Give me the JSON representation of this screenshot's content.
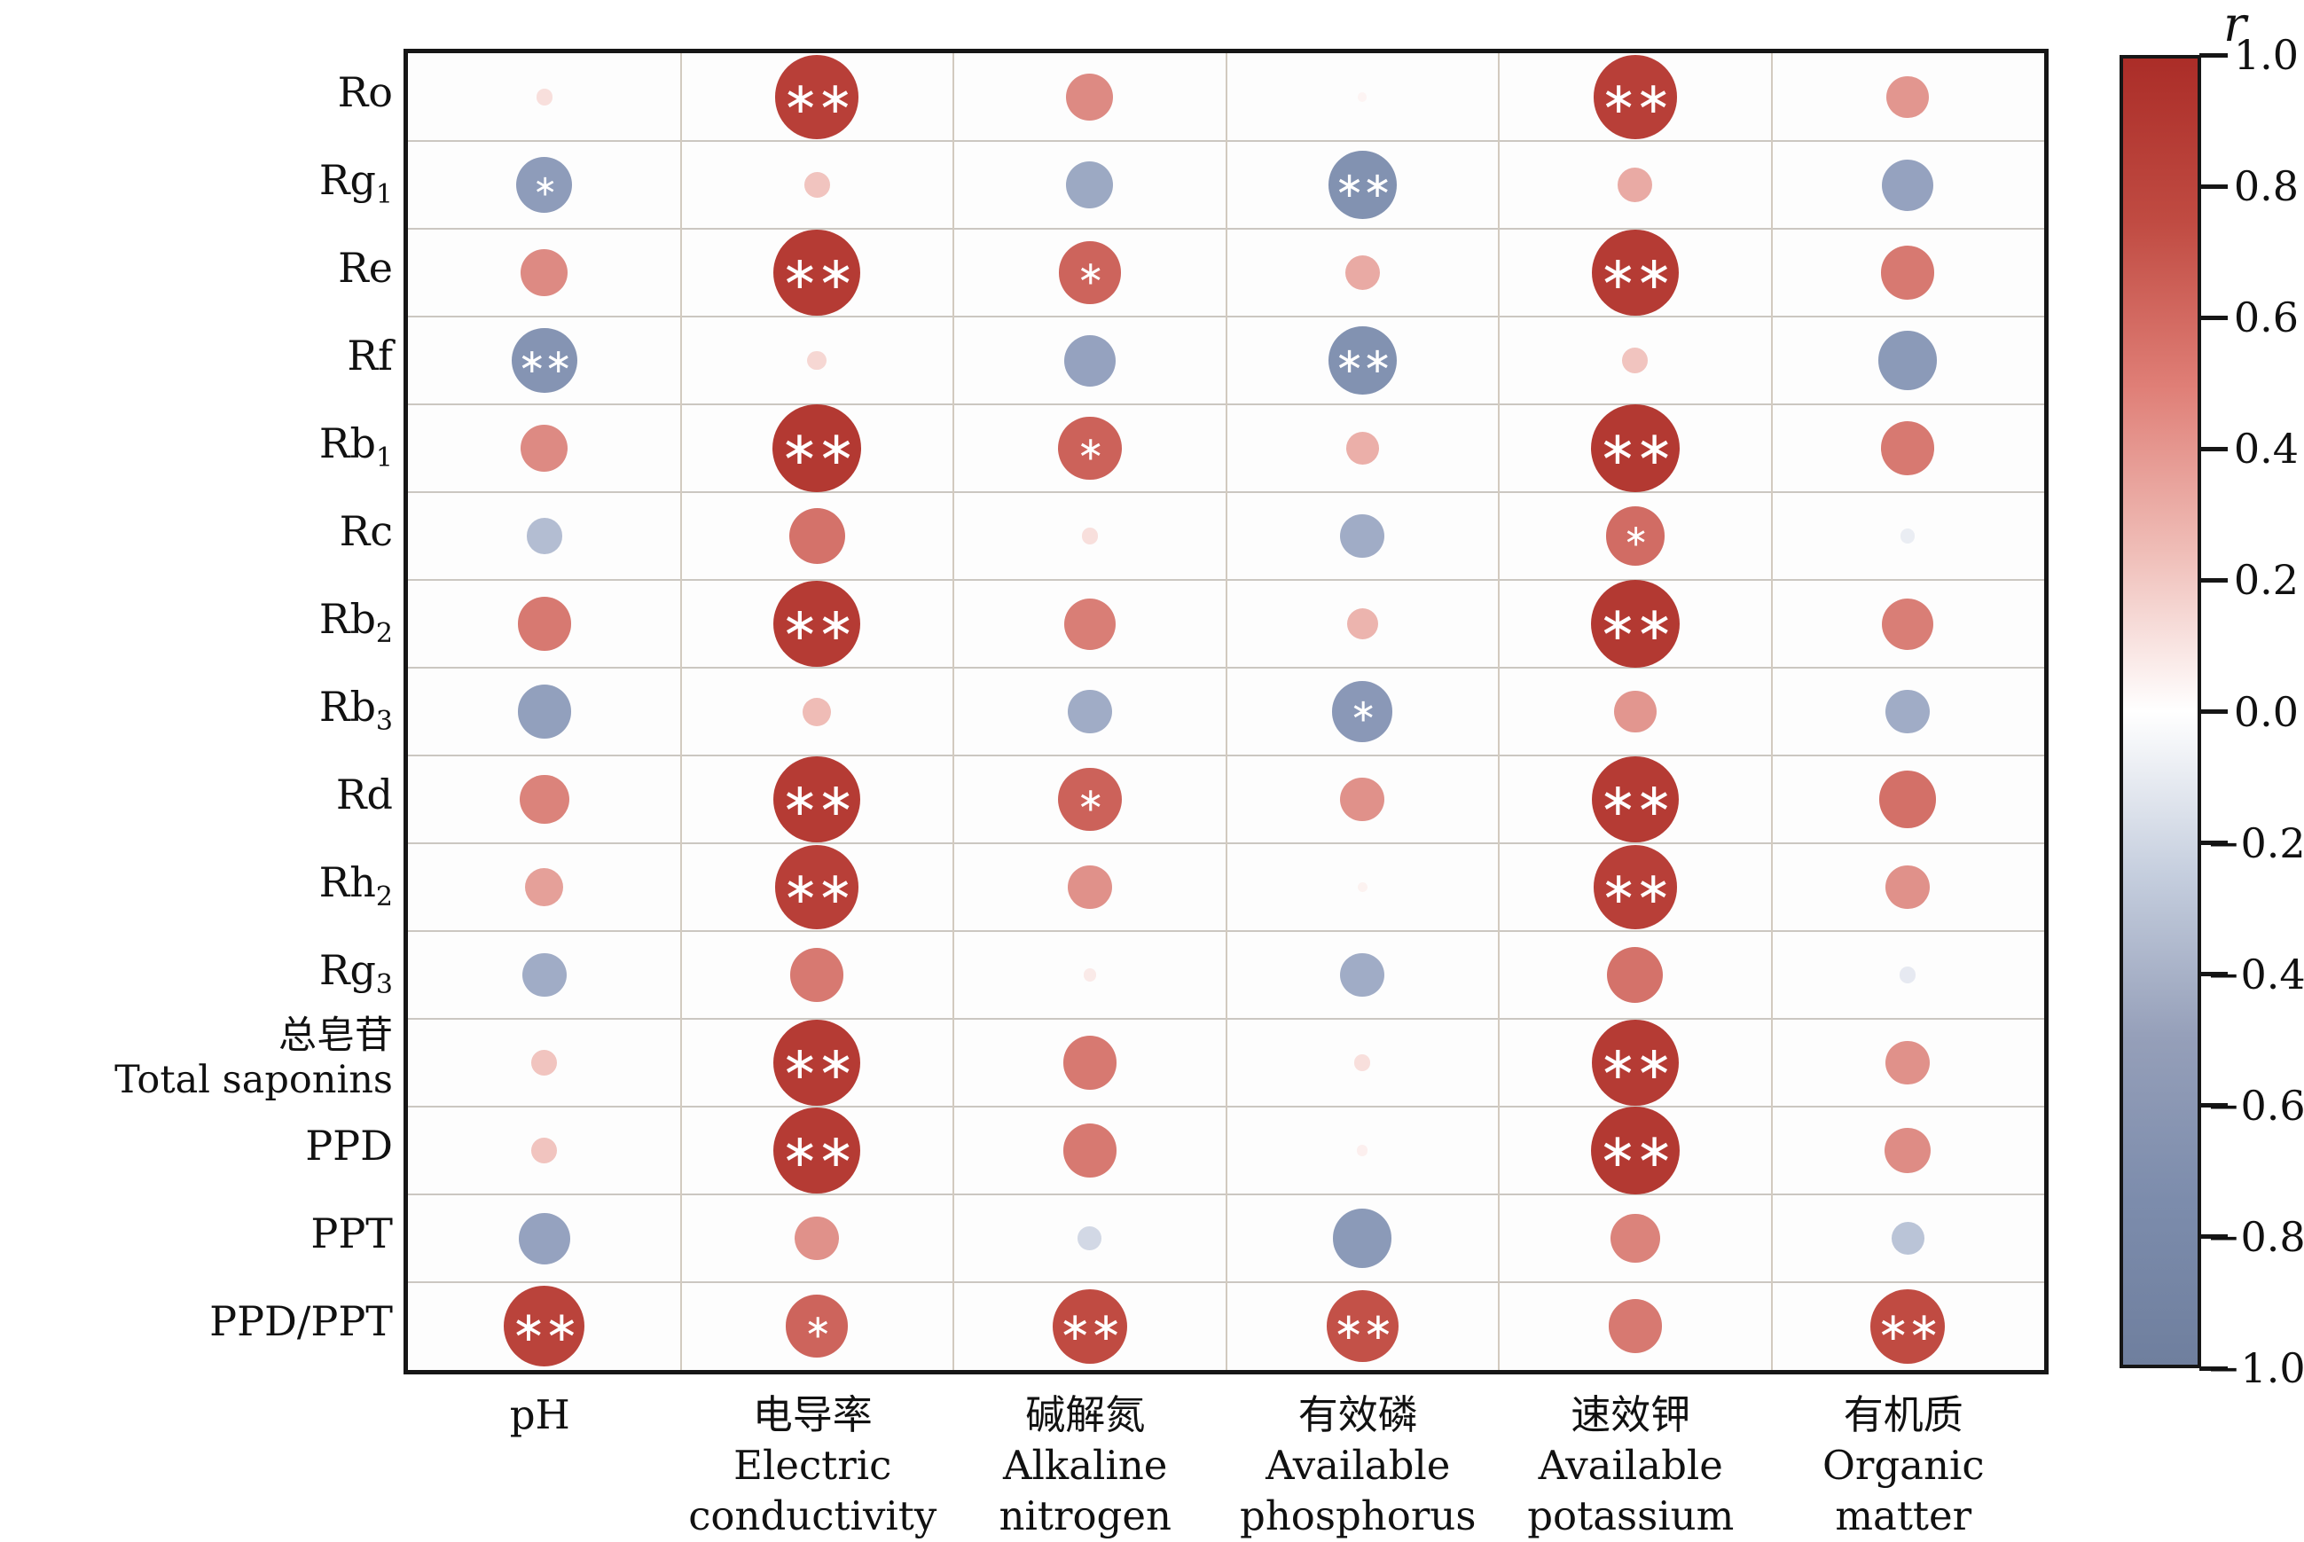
{
  "colorbar": {
    "title": "r",
    "tick_labels": [
      "1.0",
      "0.8",
      "0.6",
      "0.4",
      "0.2",
      "0.0",
      "−0.2",
      "−0.4",
      "−0.6",
      "−0.8",
      "−1.0"
    ],
    "range": [
      -1,
      1
    ],
    "max_color": "#ab2d28",
    "mid_color": "#ffffff",
    "min_color": "#6f7f9e"
  },
  "chart_data": {
    "type": "bubble-correlation-matrix",
    "legend_position": "right-colorbar",
    "grid": true,
    "positive_color": "#ab2d28",
    "negative_color": "#6f7f9e",
    "significance_symbols": {
      "p_05": "*",
      "p_01": "**"
    },
    "columns": [
      {
        "id": "ph",
        "lines": [
          "pH"
        ]
      },
      {
        "id": "electric-conductivity",
        "lines": [
          "电导率",
          "Electric",
          "conductivity"
        ]
      },
      {
        "id": "alkaline-nitrogen",
        "lines": [
          "碱解氮",
          "Alkaline",
          "nitrogen"
        ]
      },
      {
        "id": "available-phosphorus",
        "lines": [
          "有效磷",
          "Available",
          "phosphorus"
        ]
      },
      {
        "id": "available-potassium",
        "lines": [
          "速效钾",
          "Available",
          "potassium"
        ]
      },
      {
        "id": "organic-matter",
        "lines": [
          "有机质",
          "Organic",
          "matter"
        ]
      }
    ],
    "rows": [
      {
        "id": "Ro",
        "label": "Ro",
        "sub": ""
      },
      {
        "id": "Rg1",
        "label": "Rg",
        "sub": "1"
      },
      {
        "id": "Re",
        "label": "Re",
        "sub": ""
      },
      {
        "id": "Rf",
        "label": "Rf",
        "sub": ""
      },
      {
        "id": "Rb1",
        "label": "Rb",
        "sub": "1"
      },
      {
        "id": "Rc",
        "label": "Rc",
        "sub": ""
      },
      {
        "id": "Rb2",
        "label": "Rb",
        "sub": "2"
      },
      {
        "id": "Rb3",
        "label": "Rb",
        "sub": "3"
      },
      {
        "id": "Rd",
        "label": "Rd",
        "sub": ""
      },
      {
        "id": "Rh2",
        "label": "Rh",
        "sub": "2"
      },
      {
        "id": "Rg3",
        "label": "Rg",
        "sub": "3"
      },
      {
        "id": "total-saponins",
        "label": "总皂苷",
        "sub": "",
        "label2": "Total saponins"
      },
      {
        "id": "PPD",
        "label": "PPD",
        "sub": ""
      },
      {
        "id": "PPT",
        "label": "PPT",
        "sub": ""
      },
      {
        "id": "PPD-PPT",
        "label": "PPD/PPT",
        "sub": ""
      }
    ],
    "values": [
      [
        0.12,
        0.85,
        0.45,
        0.04,
        0.85,
        0.4
      ],
      [
        -0.55,
        0.22,
        -0.45,
        -0.68,
        0.32,
        -0.5
      ],
      [
        0.45,
        0.88,
        0.62,
        0.32,
        0.88,
        0.52
      ],
      [
        -0.65,
        0.15,
        -0.5,
        -0.68,
        0.22,
        -0.58
      ],
      [
        0.45,
        0.9,
        0.63,
        0.3,
        0.9,
        0.52
      ],
      [
        -0.33,
        0.55,
        0.12,
        -0.42,
        0.58,
        -0.1
      ],
      [
        0.52,
        0.88,
        0.5,
        0.28,
        0.9,
        0.5
      ],
      [
        -0.52,
        0.25,
        -0.42,
        -0.6,
        0.4,
        -0.42
      ],
      [
        0.48,
        0.88,
        0.63,
        0.42,
        0.88,
        0.56
      ],
      [
        0.36,
        0.85,
        0.42,
        0.05,
        0.85,
        0.42
      ],
      [
        -0.42,
        0.52,
        0.08,
        -0.42,
        0.55,
        -0.12
      ],
      [
        0.22,
        0.88,
        0.52,
        0.12,
        0.88,
        0.42
      ],
      [
        0.22,
        0.88,
        0.52,
        0.06,
        0.9,
        0.44
      ],
      [
        -0.5,
        0.42,
        -0.2,
        -0.58,
        0.48,
        -0.3
      ],
      [
        0.82,
        0.62,
        0.75,
        0.72,
        0.52,
        0.75
      ]
    ],
    "significance": [
      [
        "",
        "**",
        "",
        "",
        "**",
        ""
      ],
      [
        "*",
        "",
        "",
        "**",
        "",
        ""
      ],
      [
        "",
        "**",
        "*",
        "",
        "**",
        ""
      ],
      [
        "**",
        "",
        "",
        "**",
        "",
        ""
      ],
      [
        "",
        "**",
        "*",
        "",
        "**",
        ""
      ],
      [
        "",
        "",
        "",
        "",
        "*",
        ""
      ],
      [
        "",
        "**",
        "",
        "",
        "**",
        ""
      ],
      [
        "",
        "",
        "",
        "*",
        "",
        ""
      ],
      [
        "",
        "**",
        "*",
        "",
        "**",
        ""
      ],
      [
        "",
        "**",
        "",
        "",
        "**",
        ""
      ],
      [
        "",
        "",
        "",
        "",
        "",
        ""
      ],
      [
        "",
        "**",
        "",
        "",
        "**",
        ""
      ],
      [
        "",
        "**",
        "",
        "",
        "**",
        ""
      ],
      [
        "",
        "",
        "",
        "",
        "",
        ""
      ],
      [
        "**",
        "*",
        "**",
        "**",
        "",
        "**"
      ]
    ]
  }
}
